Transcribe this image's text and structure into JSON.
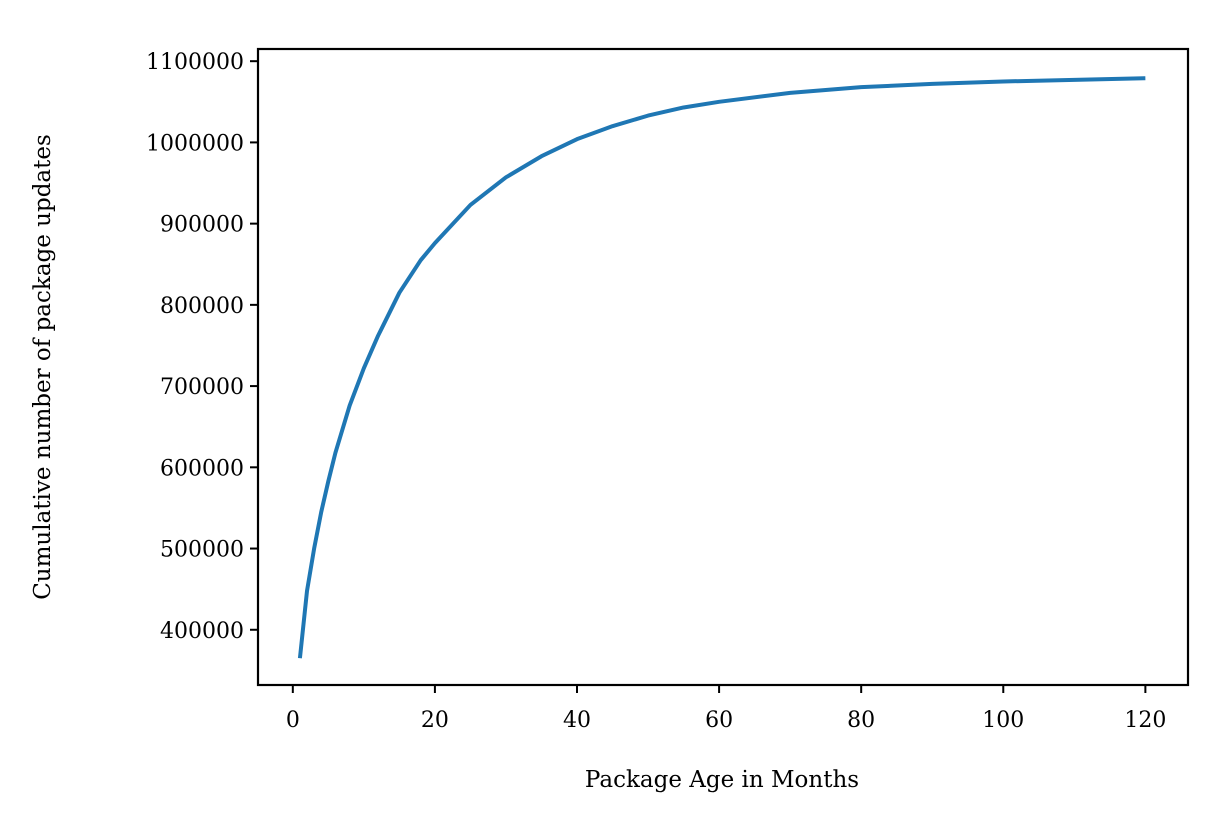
{
  "chart_data": {
    "type": "line",
    "title": "",
    "xlabel": "Package Age in Months",
    "ylabel": "Cumulative number of package updates",
    "xlim": [
      -4.9,
      126.0
    ],
    "ylim": [
      332000,
      1115000
    ],
    "xticks": [
      0,
      20,
      40,
      60,
      80,
      100,
      120
    ],
    "xtick_labels": [
      "0",
      "20",
      "40",
      "60",
      "80",
      "100",
      "120"
    ],
    "yticks": [
      400000,
      500000,
      600000,
      700000,
      800000,
      900000,
      1000000,
      1100000
    ],
    "ytick_labels": [
      "400000",
      "500000",
      "600000",
      "700000",
      "800000",
      "900000",
      "1000000",
      "1100000"
    ],
    "grid": false,
    "series": [
      {
        "color": "#1f77b4",
        "x": [
          1,
          2,
          3,
          4,
          5,
          6,
          8,
          10,
          12,
          15,
          18,
          20,
          25,
          30,
          35,
          40,
          45,
          50,
          55,
          60,
          70,
          80,
          90,
          100,
          110,
          120
        ],
        "y": [
          365000,
          448000,
          500000,
          545000,
          583000,
          618000,
          676000,
          722000,
          762000,
          815000,
          855000,
          876000,
          923000,
          957000,
          983000,
          1004000,
          1020000,
          1033000,
          1043000,
          1050000,
          1061000,
          1068000,
          1072000,
          1075000,
          1077000,
          1079000
        ]
      }
    ]
  }
}
